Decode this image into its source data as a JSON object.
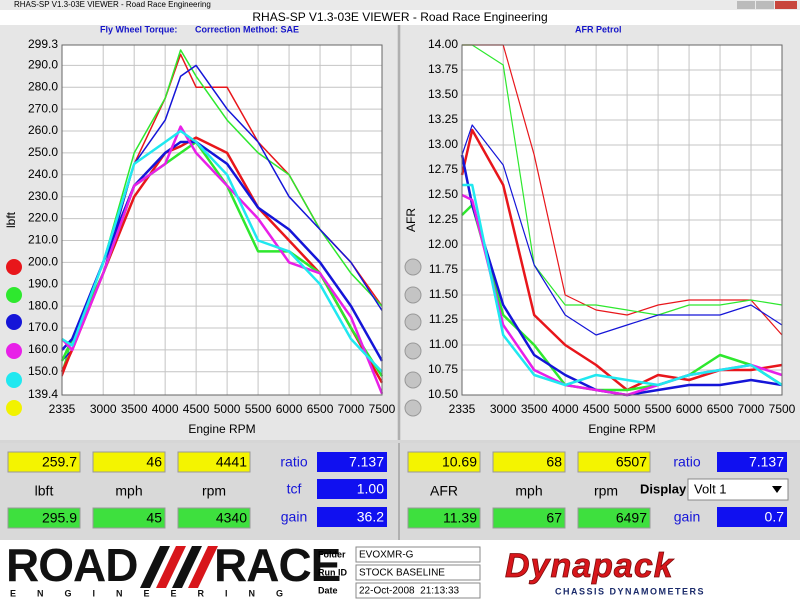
{
  "window": {
    "title": "RHAS-SP V1.3-03E VIEWER - Road Race Engineering"
  },
  "header": {
    "title": "RHAS-SP V1.3-03E VIEWER - Road Race Engineering"
  },
  "chart_data": [
    {
      "type": "line",
      "title": "Fly Wheel Torque:",
      "subtitle": "Correction Method: SAE",
      "x_label": "Engine RPM",
      "y_label": "lbft",
      "x": [
        2335,
        2500,
        3000,
        3500,
        4000,
        4250,
        4500,
        5000,
        5500,
        6000,
        6500,
        7000,
        7500
      ],
      "xlim": [
        2335,
        7500
      ],
      "xticks": [
        2335,
        3000,
        3500,
        4000,
        4500,
        5000,
        5500,
        6000,
        6500,
        7000,
        7500
      ],
      "ylim": [
        139.4,
        299.3
      ],
      "yticks": [
        139.4,
        {
          "value": 150,
          "label": "150.0"
        },
        {
          "value": 160,
          "label": "160.0"
        },
        {
          "value": 170,
          "label": "170.0"
        },
        {
          "value": 180,
          "label": "180.0"
        },
        {
          "value": 190,
          "label": "190.0"
        },
        {
          "value": 200,
          "label": "200.0"
        },
        {
          "value": 210,
          "label": "210.0"
        },
        {
          "value": 220,
          "label": "220.0"
        },
        {
          "value": 230,
          "label": "230.0"
        },
        {
          "value": 240,
          "label": "240.0"
        },
        {
          "value": 250,
          "label": "250.0"
        },
        {
          "value": 260,
          "label": "260.0"
        },
        {
          "value": 270,
          "label": "270.0"
        },
        {
          "value": 280,
          "label": "280.0"
        },
        {
          "value": 290,
          "label": "290.0"
        },
        299.3
      ],
      "grid": true,
      "series": [
        {
          "color": "#e8161b",
          "line_width": 1.5,
          "values": [
            148,
            160,
            195,
            245,
            275,
            295,
            280,
            280,
            255,
            240,
            215,
            200,
            180
          ]
        },
        {
          "color": "#2ee82e",
          "line_width": 1.5,
          "values": [
            150,
            165,
            200,
            250,
            275,
            297,
            285,
            265,
            250,
            240,
            215,
            195,
            180
          ]
        },
        {
          "color": "#1515d8",
          "line_width": 1.5,
          "values": [
            155,
            160,
            195,
            245,
            265,
            285,
            290,
            270,
            255,
            230,
            215,
            200,
            178
          ]
        },
        {
          "color": "#e8161b",
          "line_width": 2.5,
          "values": [
            150,
            160,
            195,
            230,
            250,
            253,
            257,
            250,
            225,
            210,
            195,
            170,
            145
          ]
        },
        {
          "color": "#2ee82e",
          "line_width": 2.5,
          "values": [
            155,
            165,
            195,
            235,
            245,
            250,
            255,
            235,
            205,
            205,
            195,
            170,
            148
          ]
        },
        {
          "color": "#1515d8",
          "line_width": 2.5,
          "values": [
            160,
            165,
            200,
            235,
            250,
            255,
            255,
            245,
            225,
            215,
            200,
            180,
            155
          ]
        },
        {
          "color": "#e820e8",
          "line_width": 2.5,
          "values": [
            165,
            160,
            195,
            235,
            245,
            262,
            250,
            235,
            220,
            200,
            195,
            175,
            140
          ]
        },
        {
          "color": "#20e8f0",
          "line_width": 2.5,
          "values": [
            165,
            162,
            200,
            245,
            255,
            260,
            255,
            240,
            210,
            205,
            190,
            165,
            150
          ]
        }
      ]
    },
    {
      "type": "line",
      "title": "AFR Petrol",
      "x_label": "Engine RPM",
      "y_label": "AFR",
      "x": [
        2335,
        2500,
        3000,
        3500,
        4000,
        4500,
        5000,
        5500,
        6000,
        6500,
        7000,
        7500
      ],
      "xlim": [
        2335,
        7500
      ],
      "xticks": [
        2335,
        3000,
        3500,
        4000,
        4500,
        5000,
        5500,
        6000,
        6500,
        7000,
        7500
      ],
      "ylim": [
        10.5,
        14.0
      ],
      "yticks": [
        {
          "value": 10.5,
          "label": "10.50"
        },
        10.75,
        {
          "value": 11.0,
          "label": "11.00"
        },
        11.25,
        {
          "value": 11.5,
          "label": "11.50"
        },
        11.75,
        {
          "value": 12.0,
          "label": "12.00"
        },
        12.25,
        {
          "value": 12.5,
          "label": "12.50"
        },
        12.75,
        {
          "value": 13.0,
          "label": "13.00"
        },
        13.25,
        {
          "value": 13.5,
          "label": "13.50"
        },
        13.75,
        {
          "value": 14.0,
          "label": "14.00"
        }
      ],
      "grid": true,
      "series": [
        {
          "color": "#e8161b",
          "line_width": 1.2,
          "values": [
            14.0,
            14.0,
            14.0,
            12.9,
            11.5,
            11.35,
            11.3,
            11.4,
            11.45,
            11.45,
            11.45,
            11.1
          ]
        },
        {
          "color": "#2ee82e",
          "line_width": 1.2,
          "values": [
            14.0,
            14.0,
            13.8,
            11.8,
            11.4,
            11.4,
            11.35,
            11.3,
            11.4,
            11.4,
            11.45,
            11.4
          ]
        },
        {
          "color": "#1515d8",
          "line_width": 1.2,
          "values": [
            12.9,
            13.2,
            12.8,
            11.8,
            11.3,
            11.1,
            11.2,
            11.3,
            11.3,
            11.3,
            11.4,
            11.2
          ]
        },
        {
          "color": "#e8161b",
          "line_width": 2.5,
          "values": [
            12.7,
            13.15,
            12.6,
            11.3,
            11.0,
            10.8,
            10.55,
            10.7,
            10.65,
            10.75,
            10.75,
            10.8
          ]
        },
        {
          "color": "#2ee82e",
          "line_width": 2.5,
          "values": [
            12.3,
            12.4,
            11.3,
            11.0,
            10.6,
            10.55,
            10.55,
            10.6,
            10.7,
            10.9,
            10.8,
            10.6
          ]
        },
        {
          "color": "#1515d8",
          "line_width": 2.5,
          "values": [
            12.9,
            12.4,
            11.4,
            10.9,
            10.7,
            10.55,
            10.5,
            10.55,
            10.6,
            10.6,
            10.65,
            10.6
          ]
        },
        {
          "color": "#e820e8",
          "line_width": 2.5,
          "values": [
            12.5,
            12.45,
            11.2,
            10.75,
            10.6,
            10.55,
            10.5,
            10.6,
            10.7,
            10.75,
            10.8,
            10.7
          ]
        },
        {
          "color": "#20e8f0",
          "line_width": 2.5,
          "values": [
            12.6,
            12.6,
            11.1,
            10.7,
            10.6,
            10.7,
            10.65,
            10.6,
            10.7,
            10.75,
            10.8,
            10.6
          ]
        }
      ]
    }
  ],
  "panels": [
    {
      "row1": [
        "259.7",
        "46",
        "4441"
      ],
      "row2": [
        "lbft",
        "mph",
        "rpm"
      ],
      "row3": [
        "295.9",
        "45",
        "4340"
      ],
      "ratio_label": "ratio",
      "ratio": "7.137",
      "tcf_label": "tcf",
      "tcf": "1.00",
      "gain_label": "gain",
      "gain": "36.2"
    },
    {
      "row1": [
        "10.69",
        "68",
        "6507"
      ],
      "row2": [
        "AFR",
        "mph",
        "rpm"
      ],
      "row3": [
        "11.39",
        "67",
        "6497"
      ],
      "ratio_label": "ratio",
      "ratio": "7.137",
      "display_label": "Display",
      "display": "Volt 1",
      "gain_label": "gain",
      "gain": "0.7"
    }
  ],
  "footer": {
    "logo_left": "ROAD",
    "logo_right": "RACE",
    "logo_sub": "ENGINEERING",
    "folder_label": "Folder",
    "folder": "EVOXMR-G",
    "runid_label": "Run ID",
    "runid": "STOCK BASELINE",
    "date_label": "Date",
    "date": "22-Oct-2008  21:13:33",
    "brand": "Dynapack",
    "brand_sub": "CHASSIS DYNAMOMETERS"
  }
}
